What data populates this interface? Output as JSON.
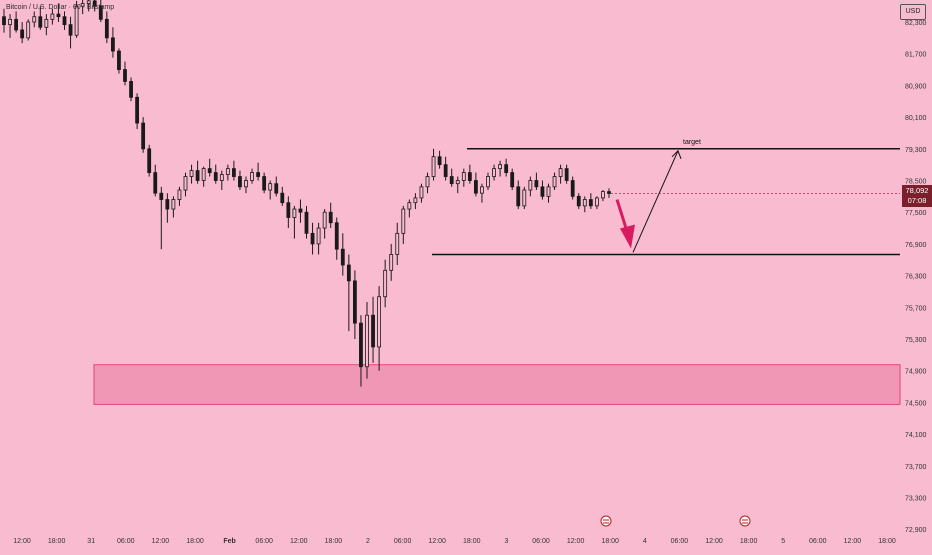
{
  "header": {
    "symbol_title": "Bitcoin / U.S. Dollar · 60 · Bitstamp",
    "currency_button": "USD"
  },
  "price_badge": {
    "price": "78,092",
    "countdown": "07:08"
  },
  "annotations": {
    "target_label": "target"
  },
  "colors": {
    "background": "#f8bbd0",
    "candle": "#1a1a1a",
    "zone_fill": "#f097b6",
    "zone_border": "#e0457f",
    "arrow_down": "#d81b60",
    "badge": "#7a1f2b"
  },
  "icons": [
    "currency-flag-icon",
    "currency-flag-icon"
  ],
  "chart_data": {
    "type": "candlestick",
    "y_axis_ticks": [
      "82,300",
      "81,700",
      "80,900",
      "80,100",
      "79,300",
      "78,500",
      "77,500",
      "76,900",
      "76,300",
      "75,700",
      "75,300",
      "74,900",
      "74,500",
      "74,100",
      "73,700",
      "73,300",
      "72,900"
    ],
    "x_axis_ticks": [
      "12:00",
      "18:00",
      "31",
      "06:00",
      "12:00",
      "18:00",
      "Feb",
      "06:00",
      "12:00",
      "18:00",
      "2",
      "06:00",
      "12:00",
      "18:00",
      "3",
      "06:00",
      "12:00",
      "18:00",
      "4",
      "06:00",
      "12:00",
      "18:00",
      "5",
      "06:00",
      "12:00",
      "18:00"
    ],
    "ylim": [
      72900,
      82700
    ],
    "series": [
      {
        "ohlc": [
          [
            82400,
            82550,
            82100,
            82250
          ],
          [
            82250,
            82450,
            82000,
            82350
          ],
          [
            82350,
            82500,
            82100,
            82150
          ],
          [
            82150,
            82300,
            81900,
            82000
          ],
          [
            82000,
            82350,
            81950,
            82300
          ],
          [
            82300,
            82500,
            82200,
            82400
          ],
          [
            82400,
            82600,
            82150,
            82200
          ],
          [
            82200,
            82450,
            82050,
            82350
          ],
          [
            82350,
            82550,
            82250,
            82450
          ],
          [
            82450,
            82650,
            82300,
            82400
          ],
          [
            82400,
            82500,
            82150,
            82250
          ],
          [
            82250,
            82400,
            81800,
            82050
          ],
          [
            82050,
            82700,
            82000,
            82600
          ],
          [
            82600,
            82750,
            82450,
            82650
          ],
          [
            82650,
            82800,
            82500,
            82700
          ],
          [
            82700,
            82850,
            82500,
            82600
          ],
          [
            82600,
            82750,
            82300,
            82350
          ],
          [
            82350,
            82500,
            81900,
            82000
          ],
          [
            82000,
            82200,
            81600,
            81750
          ],
          [
            81750,
            81800,
            81200,
            81300
          ],
          [
            81300,
            81500,
            80900,
            81000
          ],
          [
            81000,
            81100,
            80500,
            80600
          ],
          [
            80600,
            80700,
            79800,
            79950
          ],
          [
            79950,
            80100,
            79200,
            79300
          ],
          [
            79300,
            79400,
            78600,
            78700
          ],
          [
            78700,
            78900,
            78000,
            78100
          ],
          [
            78100,
            78300,
            76800,
            77900
          ],
          [
            77900,
            78100,
            77300,
            77600
          ],
          [
            77600,
            78000,
            77400,
            77900
          ],
          [
            77900,
            78300,
            77700,
            78200
          ],
          [
            78200,
            78700,
            78000,
            78600
          ],
          [
            78600,
            78900,
            78400,
            78750
          ],
          [
            78750,
            79000,
            78400,
            78500
          ],
          [
            78500,
            78850,
            78300,
            78800
          ],
          [
            78800,
            79050,
            78600,
            78700
          ],
          [
            78700,
            78900,
            78400,
            78500
          ],
          [
            78500,
            78750,
            78200,
            78650
          ],
          [
            78650,
            78900,
            78500,
            78800
          ],
          [
            78800,
            79000,
            78500,
            78600
          ],
          [
            78600,
            78750,
            78200,
            78300
          ],
          [
            78300,
            78600,
            78100,
            78500
          ],
          [
            78500,
            78800,
            78400,
            78700
          ],
          [
            78700,
            78950,
            78500,
            78600
          ],
          [
            78600,
            78700,
            78100,
            78200
          ],
          [
            78200,
            78500,
            77900,
            78400
          ],
          [
            78400,
            78600,
            78000,
            78100
          ],
          [
            78100,
            78300,
            77700,
            77800
          ],
          [
            77800,
            78000,
            77200,
            77400
          ],
          [
            77400,
            77700,
            77000,
            77600
          ],
          [
            77600,
            77900,
            77300,
            77500
          ],
          [
            77500,
            77700,
            77000,
            77100
          ],
          [
            77100,
            77300,
            76700,
            76900
          ],
          [
            76900,
            77300,
            76700,
            77200
          ],
          [
            77200,
            77600,
            77000,
            77500
          ],
          [
            77500,
            77800,
            77200,
            77300
          ],
          [
            77300,
            77400,
            76600,
            76800
          ],
          [
            76800,
            77100,
            76300,
            76500
          ],
          [
            76500,
            76700,
            75400,
            76200
          ],
          [
            76200,
            76400,
            75300,
            75500
          ],
          [
            75500,
            75600,
            74700,
            74950
          ],
          [
            74950,
            75800,
            74800,
            75600
          ],
          [
            75600,
            75900,
            75000,
            75200
          ],
          [
            75200,
            76100,
            74900,
            75900
          ],
          [
            75900,
            76600,
            75700,
            76400
          ],
          [
            76400,
            76900,
            76200,
            76700
          ],
          [
            76700,
            77300,
            76500,
            77100
          ],
          [
            77100,
            77700,
            76900,
            77600
          ],
          [
            77600,
            77900,
            77400,
            77800
          ],
          [
            77800,
            78100,
            77600,
            77950
          ],
          [
            77950,
            78400,
            77800,
            78300
          ],
          [
            78300,
            78700,
            78100,
            78600
          ],
          [
            78600,
            79300,
            78500,
            79100
          ],
          [
            79100,
            79250,
            78800,
            78900
          ],
          [
            78900,
            79100,
            78500,
            78600
          ],
          [
            78600,
            78800,
            78300,
            78400
          ],
          [
            78400,
            78600,
            78100,
            78500
          ],
          [
            78500,
            78800,
            78300,
            78700
          ],
          [
            78700,
            78900,
            78400,
            78500
          ],
          [
            78500,
            78700,
            78000,
            78100
          ],
          [
            78100,
            78400,
            77800,
            78300
          ],
          [
            78300,
            78700,
            78200,
            78600
          ],
          [
            78600,
            78900,
            78500,
            78800
          ],
          [
            78800,
            79000,
            78600,
            78900
          ],
          [
            78900,
            79050,
            78600,
            78700
          ],
          [
            78700,
            78800,
            78200,
            78300
          ],
          [
            78300,
            78500,
            77600,
            77700
          ],
          [
            77700,
            78300,
            77600,
            78200
          ],
          [
            78200,
            78600,
            78000,
            78500
          ],
          [
            78500,
            78700,
            78200,
            78300
          ],
          [
            78300,
            78500,
            77900,
            78000
          ],
          [
            78000,
            78400,
            77800,
            78300
          ],
          [
            78300,
            78700,
            78200,
            78600
          ],
          [
            78600,
            78900,
            78400,
            78800
          ],
          [
            78800,
            78900,
            78400,
            78500
          ],
          [
            78500,
            78600,
            77900,
            78000
          ],
          [
            78000,
            78100,
            77600,
            77700
          ],
          [
            77700,
            78000,
            77500,
            77900
          ],
          [
            77900,
            78100,
            77600,
            77700
          ],
          [
            77700,
            78000,
            77600,
            77950
          ],
          [
            77950,
            78200,
            77850,
            78150
          ],
          [
            78150,
            78250,
            77950,
            78092
          ]
        ]
      }
    ],
    "levels": [
      79300,
      76700
    ],
    "zone": [
      74500,
      74950
    ],
    "annotations": [
      "target"
    ]
  }
}
